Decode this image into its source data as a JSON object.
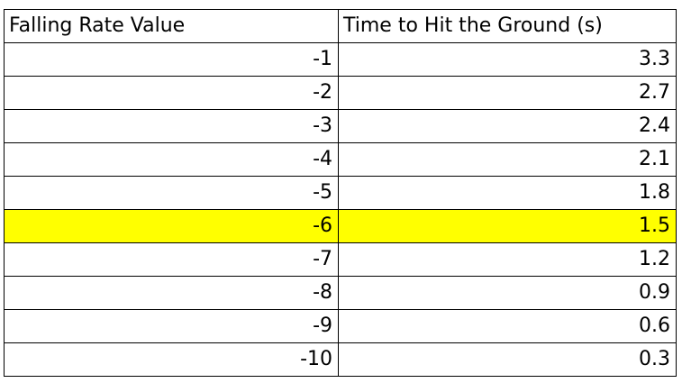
{
  "highlight_color": "#ffff00",
  "table": {
    "headers": [
      "Falling Rate Value",
      "Time to Hit the Ground (s)"
    ],
    "rows": [
      {
        "rate": "-1",
        "time": "3.3",
        "highlighted": false
      },
      {
        "rate": "-2",
        "time": "2.7",
        "highlighted": false
      },
      {
        "rate": "-3",
        "time": "2.4",
        "highlighted": false
      },
      {
        "rate": "-4",
        "time": "2.1",
        "highlighted": false
      },
      {
        "rate": "-5",
        "time": "1.8",
        "highlighted": false
      },
      {
        "rate": "-6",
        "time": "1.5",
        "highlighted": true
      },
      {
        "rate": "-7",
        "time": "1.2",
        "highlighted": false
      },
      {
        "rate": "-8",
        "time": "0.9",
        "highlighted": false
      },
      {
        "rate": "-9",
        "time": "0.6",
        "highlighted": false
      },
      {
        "rate": "-10",
        "time": "0.3",
        "highlighted": false
      }
    ]
  }
}
